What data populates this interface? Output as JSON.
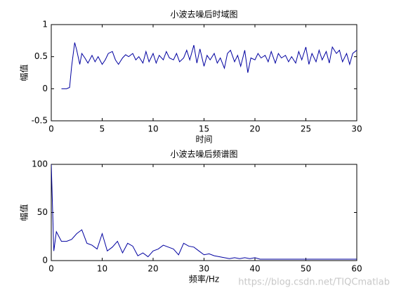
{
  "chart_data": [
    {
      "type": "line",
      "title": "小波去噪后时域图",
      "xlabel": "时间",
      "ylabel": "幅值",
      "color": "#0000a0",
      "x": [
        1,
        1.5,
        1.8,
        2,
        2.3,
        2.5,
        2.8,
        3,
        3.3,
        3.6,
        4,
        4.3,
        4.6,
        5,
        5.3,
        5.6,
        6,
        6.3,
        6.6,
        7,
        7.3,
        7.6,
        8,
        8.3,
        8.6,
        9,
        9.3,
        9.6,
        10,
        10.3,
        10.6,
        11,
        11.3,
        11.6,
        12,
        12.3,
        12.6,
        13,
        13.3,
        13.6,
        14,
        14.3,
        14.6,
        15,
        15.3,
        15.6,
        16,
        16.3,
        16.6,
        17,
        17.3,
        17.6,
        18,
        18.3,
        18.6,
        19,
        19.3,
        19.6,
        20,
        20.3,
        20.6,
        21,
        21.3,
        21.6,
        22,
        22.3,
        22.6,
        23,
        23.3,
        23.6,
        24,
        24.3,
        24.6,
        25,
        25.3,
        25.6,
        26,
        26.3,
        26.6,
        27,
        27.3,
        27.6,
        28,
        28.3,
        28.6,
        29,
        29.3,
        29.6,
        30
      ],
      "values": [
        0,
        0,
        0.02,
        0.35,
        0.72,
        0.6,
        0.38,
        0.55,
        0.48,
        0.4,
        0.52,
        0.42,
        0.5,
        0.38,
        0.45,
        0.55,
        0.58,
        0.45,
        0.38,
        0.48,
        0.53,
        0.5,
        0.55,
        0.45,
        0.5,
        0.4,
        0.58,
        0.42,
        0.55,
        0.4,
        0.52,
        0.45,
        0.58,
        0.48,
        0.45,
        0.55,
        0.42,
        0.48,
        0.6,
        0.45,
        0.68,
        0.4,
        0.62,
        0.35,
        0.52,
        0.45,
        0.55,
        0.4,
        0.48,
        0.32,
        0.55,
        0.6,
        0.42,
        0.52,
        0.35,
        0.6,
        0.25,
        0.48,
        0.45,
        0.55,
        0.48,
        0.52,
        0.42,
        0.58,
        0.4,
        0.55,
        0.48,
        0.52,
        0.42,
        0.5,
        0.4,
        0.58,
        0.45,
        0.65,
        0.38,
        0.55,
        0.42,
        0.6,
        0.45,
        0.58,
        0.4,
        0.65,
        0.55,
        0.6,
        0.42,
        0.55,
        0.38,
        0.55,
        0.6
      ],
      "xlim": [
        0,
        30
      ],
      "xticks": [
        0,
        5,
        10,
        15,
        20,
        25,
        30
      ],
      "ylim": [
        -0.5,
        1
      ],
      "yticks": [
        -0.5,
        0,
        0.5,
        1
      ]
    },
    {
      "type": "line",
      "title": "小波去噪后频谱图",
      "xlabel": "频率/Hz",
      "ylabel": "幅值",
      "color": "#0000a0",
      "x": [
        0,
        0.5,
        1,
        2,
        3,
        4,
        5,
        6,
        7,
        8,
        9,
        10,
        11,
        12,
        13,
        14,
        15,
        16,
        17,
        18,
        19,
        20,
        21,
        22,
        23,
        24,
        25,
        26,
        27,
        28,
        29,
        30,
        31,
        32,
        33,
        34,
        35,
        36,
        37,
        38,
        39,
        40,
        41,
        42,
        60
      ],
      "values": [
        100,
        10,
        30,
        20,
        20,
        22,
        28,
        32,
        18,
        16,
        12,
        28,
        10,
        14,
        20,
        8,
        18,
        15,
        5,
        8,
        4,
        10,
        12,
        16,
        14,
        12,
        6,
        18,
        15,
        14,
        10,
        6,
        7,
        5,
        4,
        3,
        2,
        3,
        2,
        3,
        2,
        3,
        1.5,
        1.5,
        1.5
      ],
      "xlim": [
        0,
        60
      ],
      "xticks": [
        0,
        10,
        20,
        30,
        40,
        50,
        60
      ],
      "ylim": [
        0,
        100
      ],
      "yticks": [
        0,
        50,
        100
      ]
    }
  ],
  "watermark": "https://blog.csdn.net/TIQCmatlab"
}
